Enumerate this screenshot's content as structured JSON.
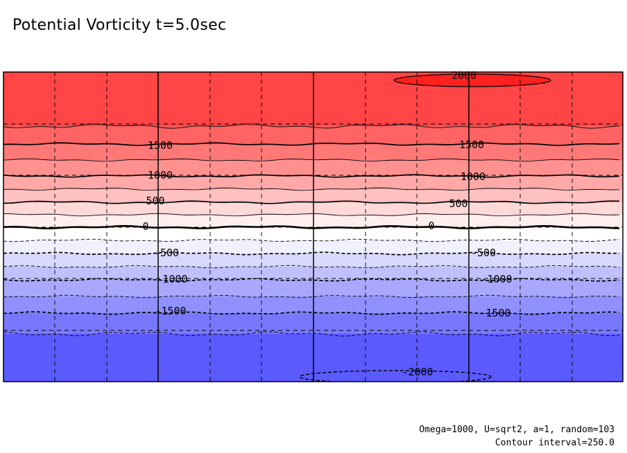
{
  "title": "Potential Vorticity t=5.0sec",
  "footer": {
    "params": "Omega=1000, U=sqrt2, a=1, random=103",
    "interval": "Contour interval=250.0"
  },
  "chart_data": {
    "type": "heatmap",
    "title": "Potential Vorticity t=5.0sec",
    "xlabel": "",
    "ylabel": "",
    "contour_interval": 250.0,
    "value_range": [
      -2000,
      2000
    ],
    "band_top_values": [
      2000,
      1750,
      1500,
      1250,
      1000,
      750,
      500,
      250,
      0,
      -250,
      -500,
      -750,
      -1000,
      -1250,
      -1500,
      -1750,
      -2000
    ],
    "band_colors": [
      "#ff4545",
      "#ff6363",
      "#ff7878",
      "#ff9090",
      "#ffa8a8",
      "#ffc0c0",
      "#ffd8d8",
      "#ffeeee",
      "#ffffff",
      "#f0f0ff",
      "#d8d8ff",
      "#c0c0ff",
      "#a8a8ff",
      "#9090ff",
      "#7878ff",
      "#5a5aff",
      "#4545ff"
    ],
    "labeled_contours": [
      2000,
      1500,
      1000,
      500,
      0,
      -500,
      -1000,
      -1500,
      -2000
    ],
    "contour_labels": [
      {
        "value": 2000,
        "text": "2000"
      },
      {
        "value": 1500,
        "text": "1500"
      },
      {
        "value": 1500,
        "text": "1500"
      },
      {
        "value": 1000,
        "text": "1000"
      },
      {
        "value": 1000,
        "text": "1000"
      },
      {
        "value": 500,
        "text": "500"
      },
      {
        "value": 500,
        "text": "500"
      },
      {
        "value": 0,
        "text": "0"
      },
      {
        "value": 0,
        "text": "0"
      },
      {
        "value": -500,
        "text": "-500"
      },
      {
        "value": -500,
        "text": "-500"
      },
      {
        "value": -1000,
        "text": "-1000"
      },
      {
        "value": -1000,
        "text": "-1000"
      },
      {
        "value": -1500,
        "text": "-1500"
      },
      {
        "value": -1500,
        "text": "-1500"
      },
      {
        "value": -2000,
        "text": "-2000"
      }
    ],
    "extreme_cells": [
      {
        "value": 2000,
        "color": "#ff2020"
      },
      {
        "value": -2000,
        "color": "#4545ff"
      }
    ],
    "grid": true,
    "negative_contours_dashed": true
  }
}
